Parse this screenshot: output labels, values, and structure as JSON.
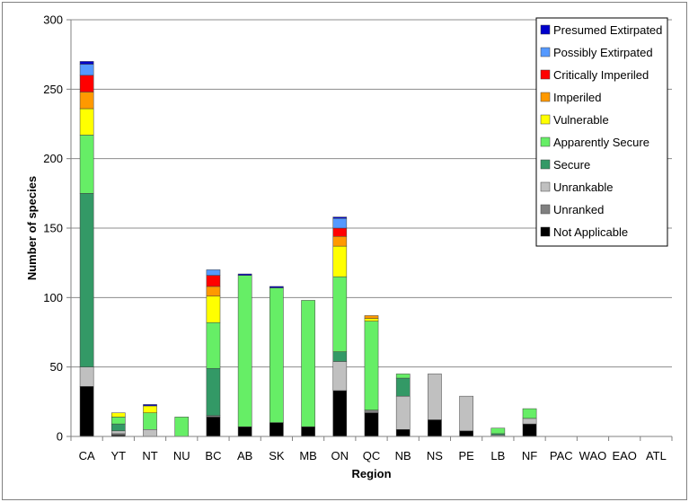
{
  "chart_data": {
    "type": "bar",
    "stacked": true,
    "title": "",
    "xlabel": "Region",
    "ylabel": "Number of species",
    "ylim": [
      0,
      300
    ],
    "yticks": [
      0,
      50,
      100,
      150,
      200,
      250,
      300
    ],
    "grid": true,
    "legend_position": "top-right",
    "categories": [
      "CA",
      "YT",
      "NT",
      "NU",
      "BC",
      "AB",
      "SK",
      "MB",
      "ON",
      "QC",
      "NB",
      "NS",
      "PE",
      "LB",
      "NF",
      "PAC",
      "WAO",
      "EAO",
      "ATL"
    ],
    "series": [
      {
        "name": "Not Applicable",
        "color": "#000000",
        "values": [
          36,
          1,
          0,
          0,
          14,
          7,
          10,
          7,
          33,
          17,
          5,
          12,
          4,
          0,
          9,
          0,
          0,
          0,
          0
        ]
      },
      {
        "name": "Unranked",
        "color": "#808080",
        "values": [
          0,
          1,
          0,
          0,
          1,
          0,
          0,
          0,
          0,
          2,
          0,
          0,
          0,
          0,
          0,
          0,
          0,
          0,
          0
        ]
      },
      {
        "name": "Unrankable",
        "color": "#c0c0c0",
        "values": [
          14,
          2,
          5,
          0,
          0,
          0,
          0,
          0,
          21,
          0,
          24,
          33,
          25,
          1,
          4,
          0,
          0,
          0,
          0
        ]
      },
      {
        "name": "Secure",
        "color": "#339966",
        "values": [
          125,
          5,
          0,
          0,
          34,
          0,
          0,
          0,
          7,
          0,
          13,
          0,
          0,
          1,
          0,
          0,
          0,
          0,
          0
        ]
      },
      {
        "name": "Apparently Secure",
        "color": "#66ee66",
        "values": [
          42,
          5,
          12,
          14,
          33,
          109,
          97,
          91,
          54,
          64,
          3,
          0,
          0,
          4,
          7,
          0,
          0,
          0,
          0
        ]
      },
      {
        "name": "Vulnerable",
        "color": "#ffff00",
        "values": [
          19,
          3,
          5,
          0,
          19,
          0,
          0,
          0,
          22,
          2,
          0,
          0,
          0,
          0,
          0,
          0,
          0,
          0,
          0
        ]
      },
      {
        "name": "Imperiled",
        "color": "#ff9900",
        "values": [
          12,
          0,
          0,
          0,
          7,
          0,
          0,
          0,
          7,
          2,
          0,
          0,
          0,
          0,
          0,
          0,
          0,
          0,
          0
        ]
      },
      {
        "name": "Critically Imperiled",
        "color": "#ff0000",
        "values": [
          12,
          0,
          0,
          0,
          8,
          0,
          0,
          0,
          6,
          0,
          0,
          0,
          0,
          0,
          0,
          0,
          0,
          0,
          0
        ]
      },
      {
        "name": "Possibly Extirpated",
        "color": "#5599ff",
        "values": [
          8,
          0,
          0,
          0,
          4,
          0,
          0,
          0,
          7,
          0,
          0,
          0,
          0,
          0,
          0,
          0,
          0,
          0,
          0
        ]
      },
      {
        "name": "Presumed Extirpated",
        "color": "#0000cc",
        "values": [
          2,
          0,
          1,
          0,
          0,
          1,
          1,
          0,
          1,
          0,
          0,
          0,
          0,
          0,
          0,
          0,
          0,
          0,
          0
        ]
      }
    ]
  }
}
